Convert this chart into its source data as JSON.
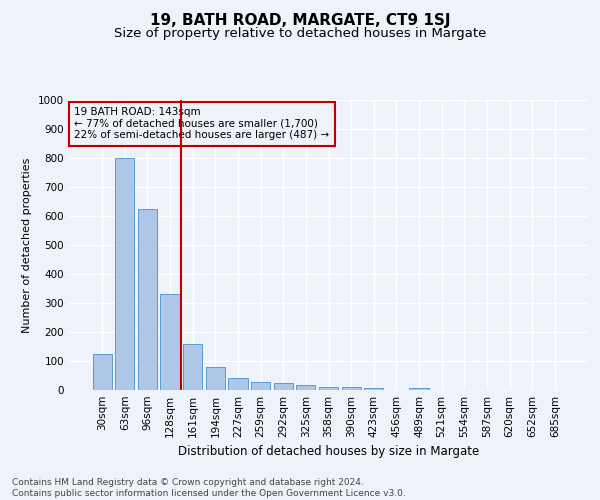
{
  "title": "19, BATH ROAD, MARGATE, CT9 1SJ",
  "subtitle": "Size of property relative to detached houses in Margate",
  "xlabel": "Distribution of detached houses by size in Margate",
  "ylabel": "Number of detached properties",
  "footer_line1": "Contains HM Land Registry data © Crown copyright and database right 2024.",
  "footer_line2": "Contains public sector information licensed under the Open Government Licence v3.0.",
  "annotation_line1": "19 BATH ROAD: 143sqm",
  "annotation_line2": "← 77% of detached houses are smaller (1,700)",
  "annotation_line3": "22% of semi-detached houses are larger (487) →",
  "bar_categories": [
    "30sqm",
    "63sqm",
    "96sqm",
    "128sqm",
    "161sqm",
    "194sqm",
    "227sqm",
    "259sqm",
    "292sqm",
    "325sqm",
    "358sqm",
    "390sqm",
    "423sqm",
    "456sqm",
    "489sqm",
    "521sqm",
    "554sqm",
    "587sqm",
    "620sqm",
    "652sqm",
    "685sqm"
  ],
  "bar_values": [
    125,
    800,
    625,
    330,
    160,
    80,
    40,
    28,
    25,
    18,
    12,
    10,
    8,
    0,
    7,
    0,
    0,
    0,
    0,
    0,
    0
  ],
  "bar_color": "#aec6e8",
  "bar_edge_color": "#5b9bd5",
  "vline_x": 3.5,
  "vline_color": "#c00000",
  "annotation_box_color": "#c00000",
  "ylim": [
    0,
    1000
  ],
  "yticks": [
    0,
    100,
    200,
    300,
    400,
    500,
    600,
    700,
    800,
    900,
    1000
  ],
  "background_color": "#eef2f9",
  "grid_color": "#ffffff",
  "title_fontsize": 11,
  "subtitle_fontsize": 9.5,
  "footer_fontsize": 6.5,
  "ylabel_fontsize": 8,
  "xlabel_fontsize": 8.5,
  "tick_fontsize": 7.5,
  "annot_fontsize": 7.5
}
